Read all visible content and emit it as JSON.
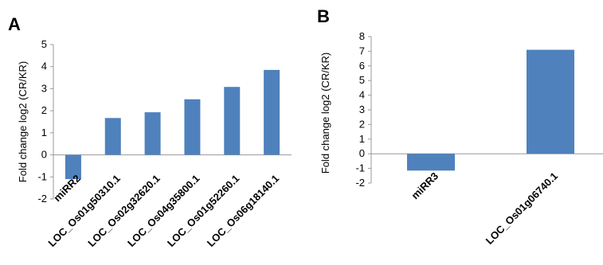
{
  "panels": [
    {
      "letter": "A",
      "chart_data": {
        "type": "bar",
        "ylabel": "Fold change log2 (CR/KR)",
        "ylim": [
          -2,
          5
        ],
        "yticks": [
          5,
          4,
          3,
          2,
          1,
          0,
          -1,
          -2
        ],
        "categories": [
          "miRR2",
          "LOC_Os01g50310.1",
          "LOC_Os02g32620.1",
          "LOC_Os04g35800.1",
          "LOC_Os01g52260.1",
          "LOC_Os06g18140.1"
        ],
        "values": [
          -1.1,
          1.67,
          1.93,
          2.52,
          3.08,
          3.85
        ],
        "color": "#4f81bd",
        "grid": false
      }
    },
    {
      "letter": "B",
      "chart_data": {
        "type": "bar",
        "ylabel": "Fold change log2 (CR/KR)",
        "ylim": [
          -2,
          8
        ],
        "yticks": [
          8,
          7,
          6,
          5,
          4,
          3,
          2,
          1,
          0,
          -1,
          -2
        ],
        "categories": [
          "miRR3",
          "LOC_Os01g06740.1"
        ],
        "values": [
          -1.15,
          7.1
        ],
        "color": "#4f81bd",
        "grid": false
      }
    }
  ]
}
